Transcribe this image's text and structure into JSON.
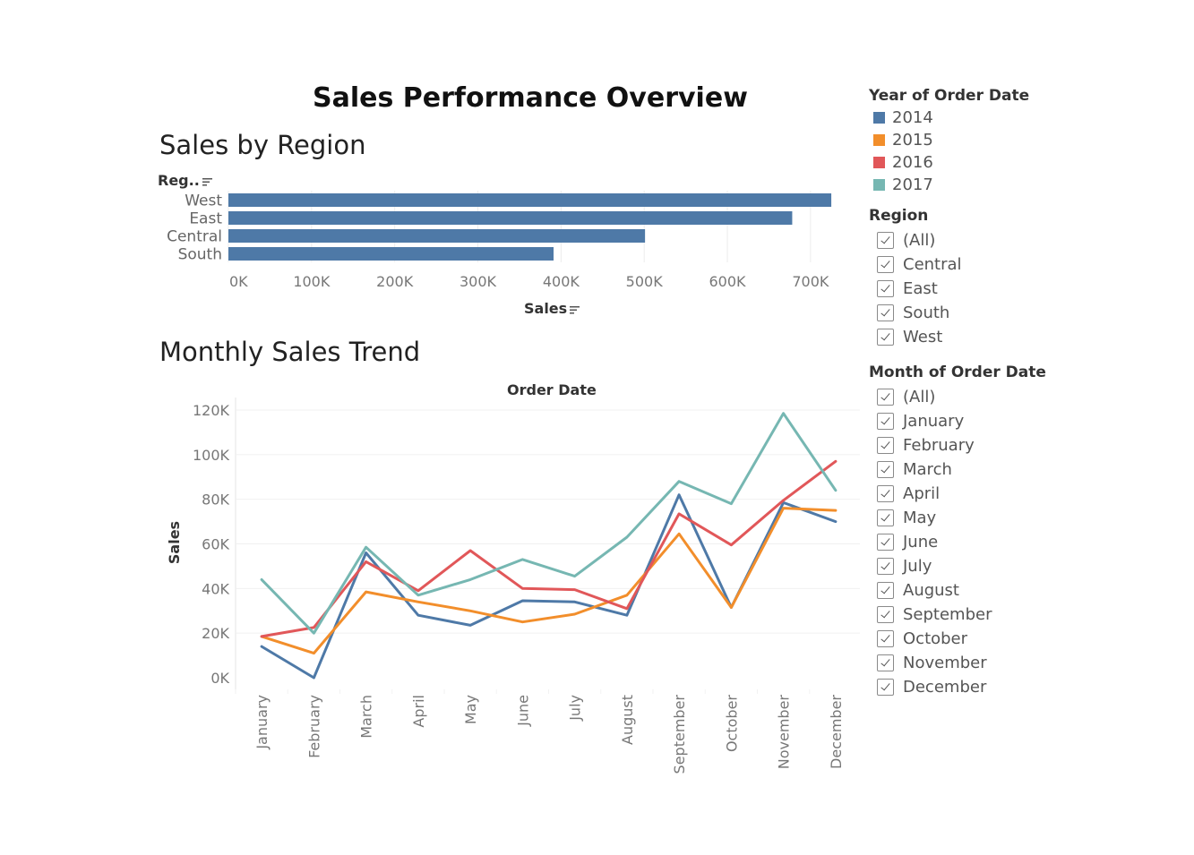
{
  "dashboard": {
    "title": "Sales Performance Overview"
  },
  "region_chart": {
    "sheet_title": "Sales by Region",
    "row_header": "Reg..",
    "x_axis_title": "Sales"
  },
  "trend_chart": {
    "sheet_title": "Monthly Sales Trend",
    "column_header": "Order Date",
    "y_axis_title": "Sales"
  },
  "colors": {
    "bar": "#4e79a7",
    "2014": "#4e79a7",
    "2015": "#f28e2b",
    "2016": "#e15759",
    "2017": "#76b7b2"
  },
  "legends": {
    "year": {
      "title": "Year of Order Date",
      "items": [
        {
          "label": "2014",
          "color": "#4e79a7"
        },
        {
          "label": "2015",
          "color": "#f28e2b"
        },
        {
          "label": "2016",
          "color": "#e15759"
        },
        {
          "label": "2017",
          "color": "#76b7b2"
        }
      ]
    },
    "region": {
      "title": "Region",
      "items": [
        "(All)",
        "Central",
        "East",
        "South",
        "West"
      ]
    },
    "month": {
      "title": "Month of Order Date",
      "items": [
        "(All)",
        "January",
        "February",
        "March",
        "April",
        "May",
        "June",
        "July",
        "August",
        "September",
        "October",
        "November",
        "December"
      ]
    }
  },
  "chart_data": [
    {
      "type": "bar",
      "orientation": "horizontal",
      "title": "Sales by Region",
      "categories": [
        "West",
        "East",
        "Central",
        "South"
      ],
      "values": [
        725000,
        678000,
        501000,
        391000
      ],
      "xlabel": "Sales",
      "ylabel": "Reg..",
      "xlim": [
        0,
        740000
      ],
      "x_ticks": [
        "0K",
        "100K",
        "200K",
        "300K",
        "400K",
        "500K",
        "600K",
        "700K"
      ],
      "grid": true
    },
    {
      "type": "line",
      "title": "Monthly Sales Trend",
      "column_header": "Order Date",
      "categories": [
        "January",
        "February",
        "March",
        "April",
        "May",
        "June",
        "July",
        "August",
        "September",
        "October",
        "November",
        "December"
      ],
      "series": [
        {
          "name": "2014",
          "values": [
            14000,
            0,
            56000,
            28000,
            23500,
            34500,
            34000,
            28000,
            82000,
            31500,
            78500,
            70000
          ]
        },
        {
          "name": "2015",
          "values": [
            18500,
            11000,
            38500,
            34000,
            30000,
            25000,
            28500,
            37000,
            64500,
            31500,
            76000,
            75000
          ]
        },
        {
          "name": "2016",
          "values": [
            18500,
            22500,
            52000,
            39000,
            57000,
            40000,
            39500,
            31000,
            73500,
            59500,
            79500,
            97000
          ]
        },
        {
          "name": "2017",
          "values": [
            44000,
            20000,
            58500,
            37000,
            44000,
            53000,
            45500,
            63000,
            88000,
            78000,
            118500,
            84000
          ]
        }
      ],
      "ylabel": "Sales",
      "ylim": [
        0,
        120000
      ],
      "y_ticks": [
        "0K",
        "20K",
        "40K",
        "60K",
        "80K",
        "100K",
        "120K"
      ],
      "legend": "right",
      "grid": true
    }
  ]
}
